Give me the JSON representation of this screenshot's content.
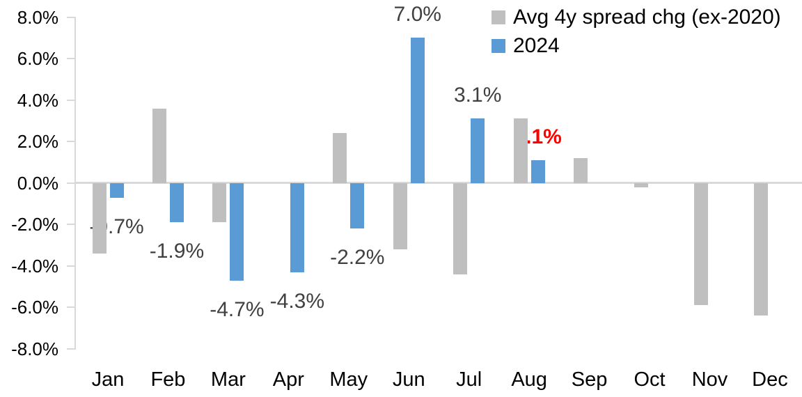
{
  "chart_data": {
    "type": "bar",
    "title": "",
    "xlabel": "",
    "ylabel": "",
    "categories": [
      "Jan",
      "Feb",
      "Mar",
      "Apr",
      "May",
      "Jun",
      "Jul",
      "Aug",
      "Sep",
      "Oct",
      "Nov",
      "Dec"
    ],
    "series": [
      {
        "name": "Avg 4y spread chg (ex-2020)",
        "color": "#BFBFBF",
        "values": [
          -3.4,
          3.6,
          -1.9,
          0.0,
          2.4,
          -3.2,
          -4.4,
          3.1,
          1.2,
          -0.2,
          -5.9,
          -6.4
        ]
      },
      {
        "name": "2024",
        "color": "#5B9BD5",
        "values": [
          -0.7,
          -1.9,
          -4.7,
          -4.3,
          -2.2,
          7.0,
          3.1,
          1.1,
          null,
          null,
          null,
          null
        ]
      }
    ],
    "data_labels": [
      {
        "category": "Jan",
        "text": "-0.7%",
        "color": "#404040",
        "bold": false
      },
      {
        "category": "Feb",
        "text": "-1.9%",
        "color": "#404040",
        "bold": false
      },
      {
        "category": "Mar",
        "text": "-4.7%",
        "color": "#404040",
        "bold": false
      },
      {
        "category": "Apr",
        "text": "-4.3%",
        "color": "#404040",
        "bold": false
      },
      {
        "category": "May",
        "text": "-2.2%",
        "color": "#404040",
        "bold": false
      },
      {
        "category": "Jun",
        "text": "7.0%",
        "color": "#404040",
        "bold": false
      },
      {
        "category": "Jul",
        "text": "3.1%",
        "color": "#404040",
        "bold": false
      },
      {
        "category": "Aug",
        "text": "1.1%",
        "color": "#FF0000",
        "bold": true
      }
    ],
    "ylim": [
      -8,
      8
    ],
    "yticks": [
      {
        "label": "8.0%",
        "v": 8
      },
      {
        "label": "6.0%",
        "v": 6
      },
      {
        "label": "4.0%",
        "v": 4
      },
      {
        "label": "2.0%",
        "v": 2
      },
      {
        "label": "0.0%",
        "v": 0
      },
      {
        "label": "-2.0%",
        "v": -2
      },
      {
        "label": "-4.0%",
        "v": -4
      },
      {
        "label": "-6.0%",
        "v": -6
      },
      {
        "label": "-8.0%",
        "v": -8
      }
    ],
    "legend_position": "top-right",
    "gridlines": "none",
    "axis_color": "#D9D9D9",
    "label_color": "#404040",
    "highlight_color": "#FF0000"
  }
}
